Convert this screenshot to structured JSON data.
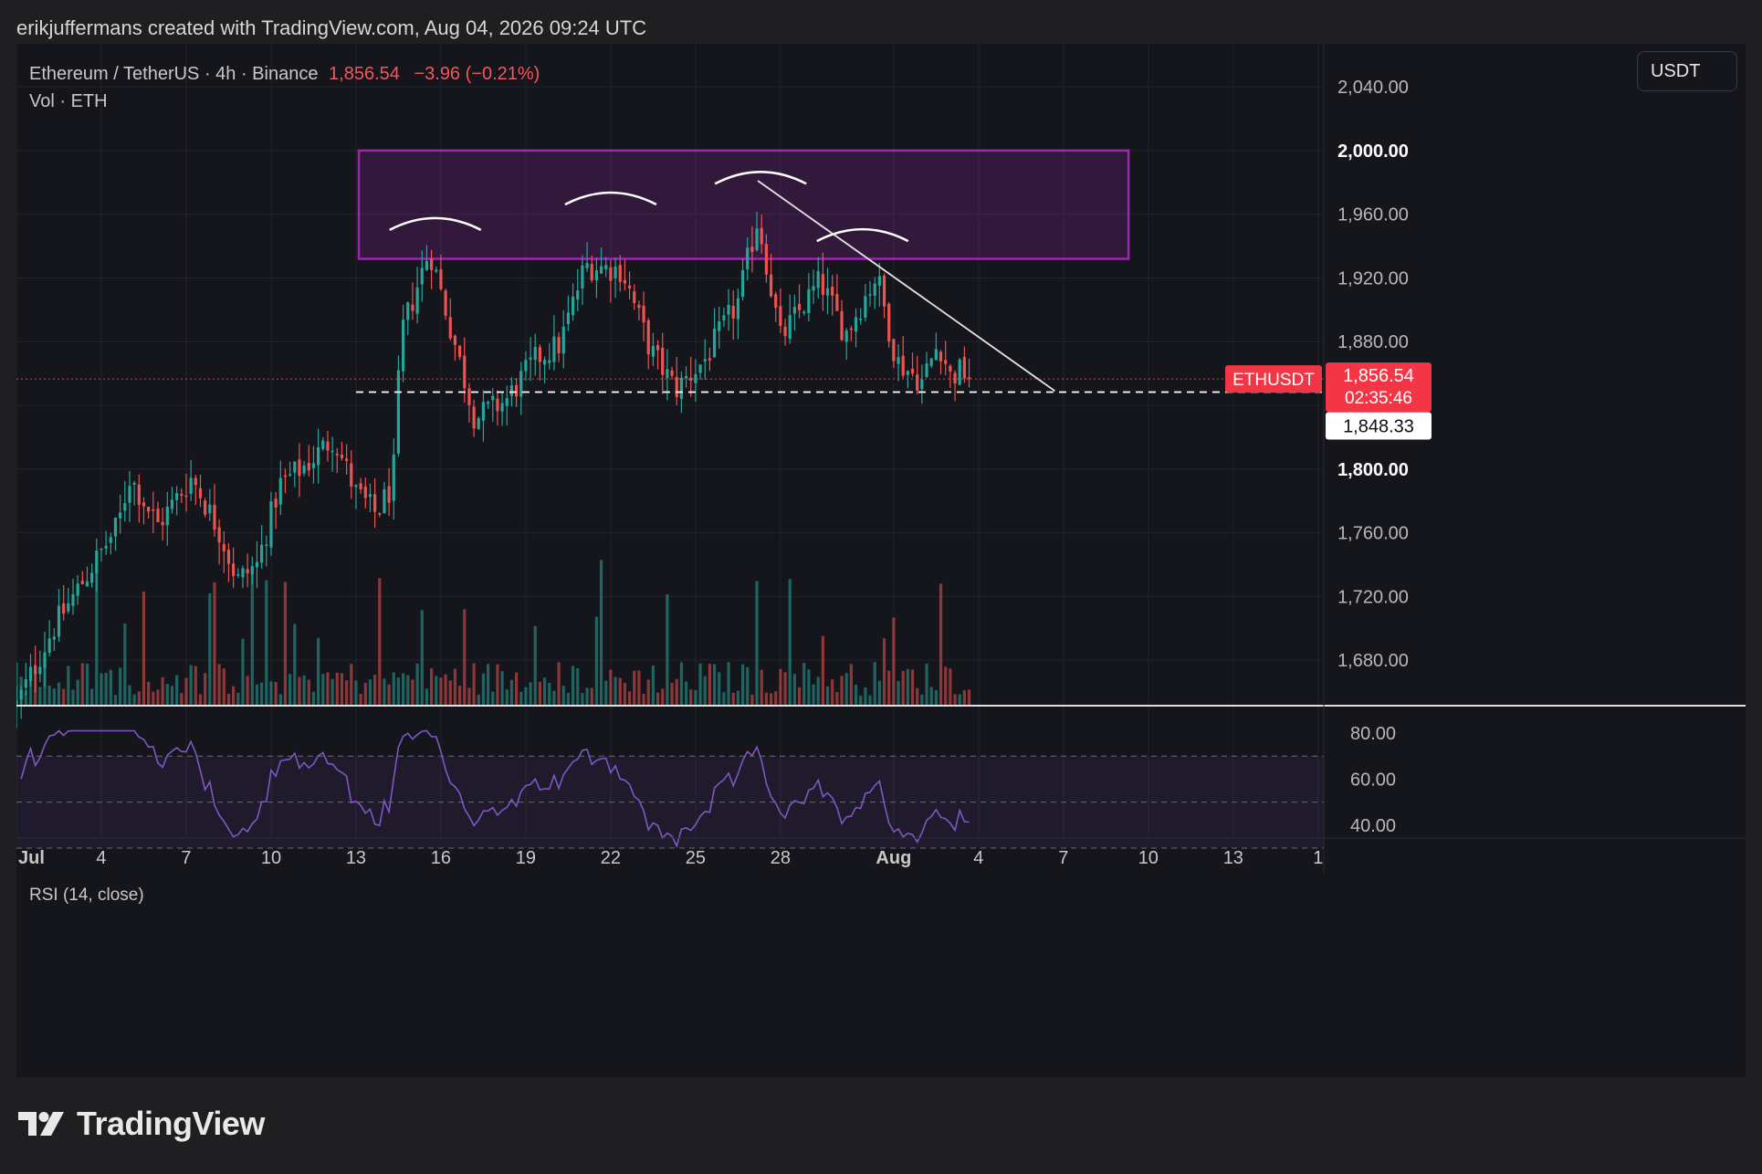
{
  "header": {
    "text": "erikjuffermans created with TradingView.com, Aug 04, 2026 09:24 UTC"
  },
  "legend": {
    "symbol": "Ethereum / TetherUS · 4h · Binance",
    "price": "1,856.54",
    "change": "−3.96 (−0.21%)",
    "volume": "Vol · ETH"
  },
  "currency_button": "USDT",
  "rsi_label": "RSI (14, close)",
  "brand": "TradingView",
  "colors": {
    "up": "#26a69a",
    "down": "#ef5350",
    "zone": "#9c27b0",
    "rsi": "#7e57c2",
    "last_price": "#f23645"
  },
  "chart_data": {
    "type": "candlestick",
    "symbol": "ETHUSDT",
    "timeframe": "4h",
    "y_axis": {
      "min": 1652,
      "max": 2067,
      "ticks": [
        "2,040.00",
        "2,000.00",
        "1,960.00",
        "1,920.00",
        "1,880.00",
        "1,840.00",
        "1,800.00",
        "1,760.00",
        "1,720.00",
        "1,680.00"
      ],
      "tick_values": [
        2040,
        2000,
        1960,
        1920,
        1880,
        1840,
        1800,
        1760,
        1720,
        1680
      ],
      "bold_ticks": [
        "2,000.00",
        "1,800.00"
      ]
    },
    "x_axis": {
      "labels": [
        "Jul",
        "4",
        "7",
        "10",
        "13",
        "16",
        "19",
        "22",
        "25",
        "28",
        "Aug",
        "4",
        "7",
        "10",
        "13",
        "1"
      ],
      "label_days": [
        1,
        4,
        7,
        10,
        13,
        16,
        19,
        22,
        25,
        28,
        32,
        35,
        38,
        41,
        44,
        47
      ],
      "start_day": 1,
      "end_day": 47.2
    },
    "last_price": {
      "label": "ETHUSDT",
      "value": "1,856.54",
      "countdown": "02:35:46",
      "y": 1856.54
    },
    "support_level": {
      "value": "1,848.33",
      "y": 1848.33
    },
    "resistance_zone": {
      "from_day": 13.1,
      "to_day": 40.3,
      "low": 1932,
      "high": 2000
    },
    "trendline": [
      {
        "day": 27.2,
        "price": 1981
      },
      {
        "day": 37.7,
        "price": 1849
      }
    ],
    "top_arcs": [
      {
        "day": 15.8,
        "price": 1957
      },
      {
        "day": 22.0,
        "price": 1973
      },
      {
        "day": 27.3,
        "price": 1986
      },
      {
        "day": 30.9,
        "price": 1950
      }
    ],
    "price_keypoints": [
      {
        "day": 1.0,
        "price": 1652
      },
      {
        "day": 2.3,
        "price": 1700
      },
      {
        "day": 4.6,
        "price": 1765
      },
      {
        "day": 5.0,
        "price": 1795
      },
      {
        "day": 6.0,
        "price": 1765
      },
      {
        "day": 7.2,
        "price": 1795
      },
      {
        "day": 8.2,
        "price": 1760
      },
      {
        "day": 8.8,
        "price": 1730
      },
      {
        "day": 9.5,
        "price": 1740
      },
      {
        "day": 10.3,
        "price": 1790
      },
      {
        "day": 11.4,
        "price": 1805
      },
      {
        "day": 12.2,
        "price": 1820
      },
      {
        "day": 13.0,
        "price": 1785
      },
      {
        "day": 13.7,
        "price": 1772
      },
      {
        "day": 14.3,
        "price": 1790
      },
      {
        "day": 14.6,
        "price": 1885
      },
      {
        "day": 15.6,
        "price": 1938
      },
      {
        "day": 16.2,
        "price": 1898
      },
      {
        "day": 17.2,
        "price": 1832
      },
      {
        "day": 18.3,
        "price": 1843
      },
      {
        "day": 19.4,
        "price": 1870
      },
      {
        "day": 20.2,
        "price": 1878
      },
      {
        "day": 21.1,
        "price": 1928
      },
      {
        "day": 22.4,
        "price": 1925
      },
      {
        "day": 23.4,
        "price": 1875
      },
      {
        "day": 24.3,
        "price": 1850
      },
      {
        "day": 25.3,
        "price": 1868
      },
      {
        "day": 26.5,
        "price": 1905
      },
      {
        "day": 27.2,
        "price": 1958
      },
      {
        "day": 28.0,
        "price": 1882
      },
      {
        "day": 29.4,
        "price": 1918
      },
      {
        "day": 30.3,
        "price": 1885
      },
      {
        "day": 31.4,
        "price": 1922
      },
      {
        "day": 32.1,
        "price": 1868
      },
      {
        "day": 33.0,
        "price": 1855
      },
      {
        "day": 33.6,
        "price": 1880
      },
      {
        "day": 34.0,
        "price": 1858
      },
      {
        "day": 34.4,
        "price": 1862
      },
      {
        "day": 34.8,
        "price": 1856.5
      }
    ],
    "rsi": {
      "y_ticks": [
        "80.00",
        "60.00",
        "40.00"
      ],
      "tick_values": [
        80,
        60,
        40
      ],
      "bands": [
        70,
        50,
        30
      ],
      "min": 26,
      "max": 81
    }
  }
}
